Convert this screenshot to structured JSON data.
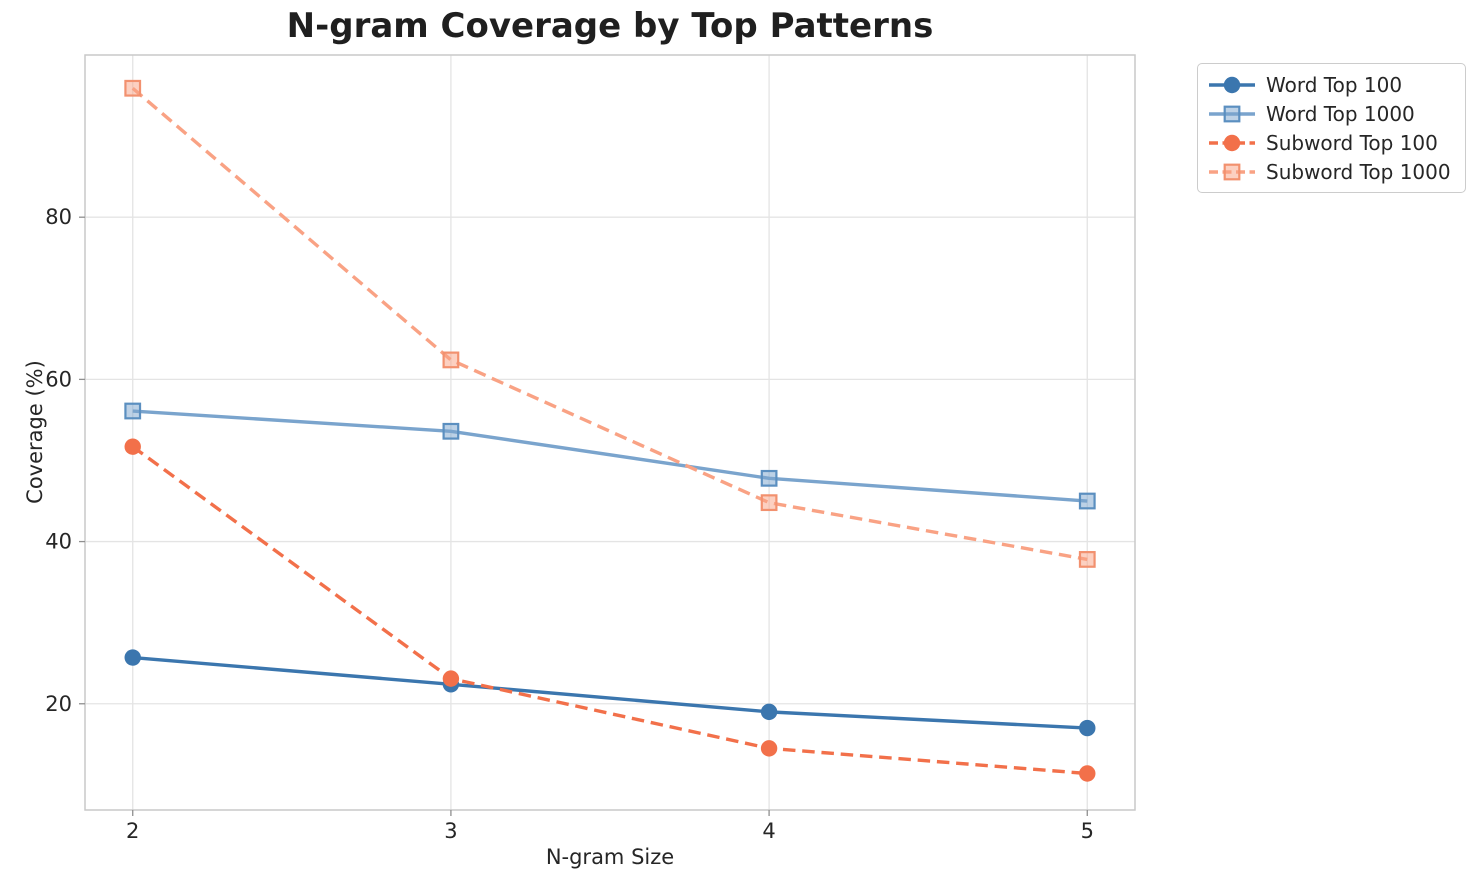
{
  "chart_data": {
    "type": "line",
    "title": "N-gram Coverage by Top Patterns",
    "xlabel": "N-gram Size",
    "ylabel": "Coverage (%)",
    "x": [
      2,
      3,
      4,
      5
    ],
    "x_ticks": [
      "2",
      "3",
      "4",
      "5"
    ],
    "y_ticks": [
      20,
      40,
      60,
      80
    ],
    "xlim": [
      1.85,
      5.15
    ],
    "ylim": [
      6.9,
      100.0
    ],
    "grid": true,
    "legend_position": "outside-upper-right",
    "series": [
      {
        "name": "Word Top 100",
        "values": [
          25.7,
          22.4,
          19.0,
          17.0
        ],
        "color": "#3b76ae",
        "edge": "#3b76ae",
        "marker": "circle",
        "linestyle": "solid"
      },
      {
        "name": "Word Top 1000",
        "values": [
          56.1,
          53.6,
          47.8,
          45.0
        ],
        "color": "#7aa4cd",
        "edge": "#5b8fc0",
        "marker": "square",
        "linestyle": "solid"
      },
      {
        "name": "Subword Top 100",
        "values": [
          51.7,
          23.1,
          14.5,
          11.4
        ],
        "color": "#f2704a",
        "edge": "#f2704a",
        "marker": "circle",
        "linestyle": "dashed"
      },
      {
        "name": "Subword Top 1000",
        "values": [
          95.9,
          62.4,
          44.8,
          37.8
        ],
        "color": "#f9a284",
        "edge": "#f2916f",
        "marker": "square",
        "linestyle": "dashed"
      }
    ],
    "style": {
      "grid_color": "#e4e4e4",
      "spine_color": "#c9c9c9",
      "tick_color": "#8f8f8f",
      "text_color": "#262626",
      "title_color": "#1f1f1f",
      "background": "#ffffff"
    }
  }
}
